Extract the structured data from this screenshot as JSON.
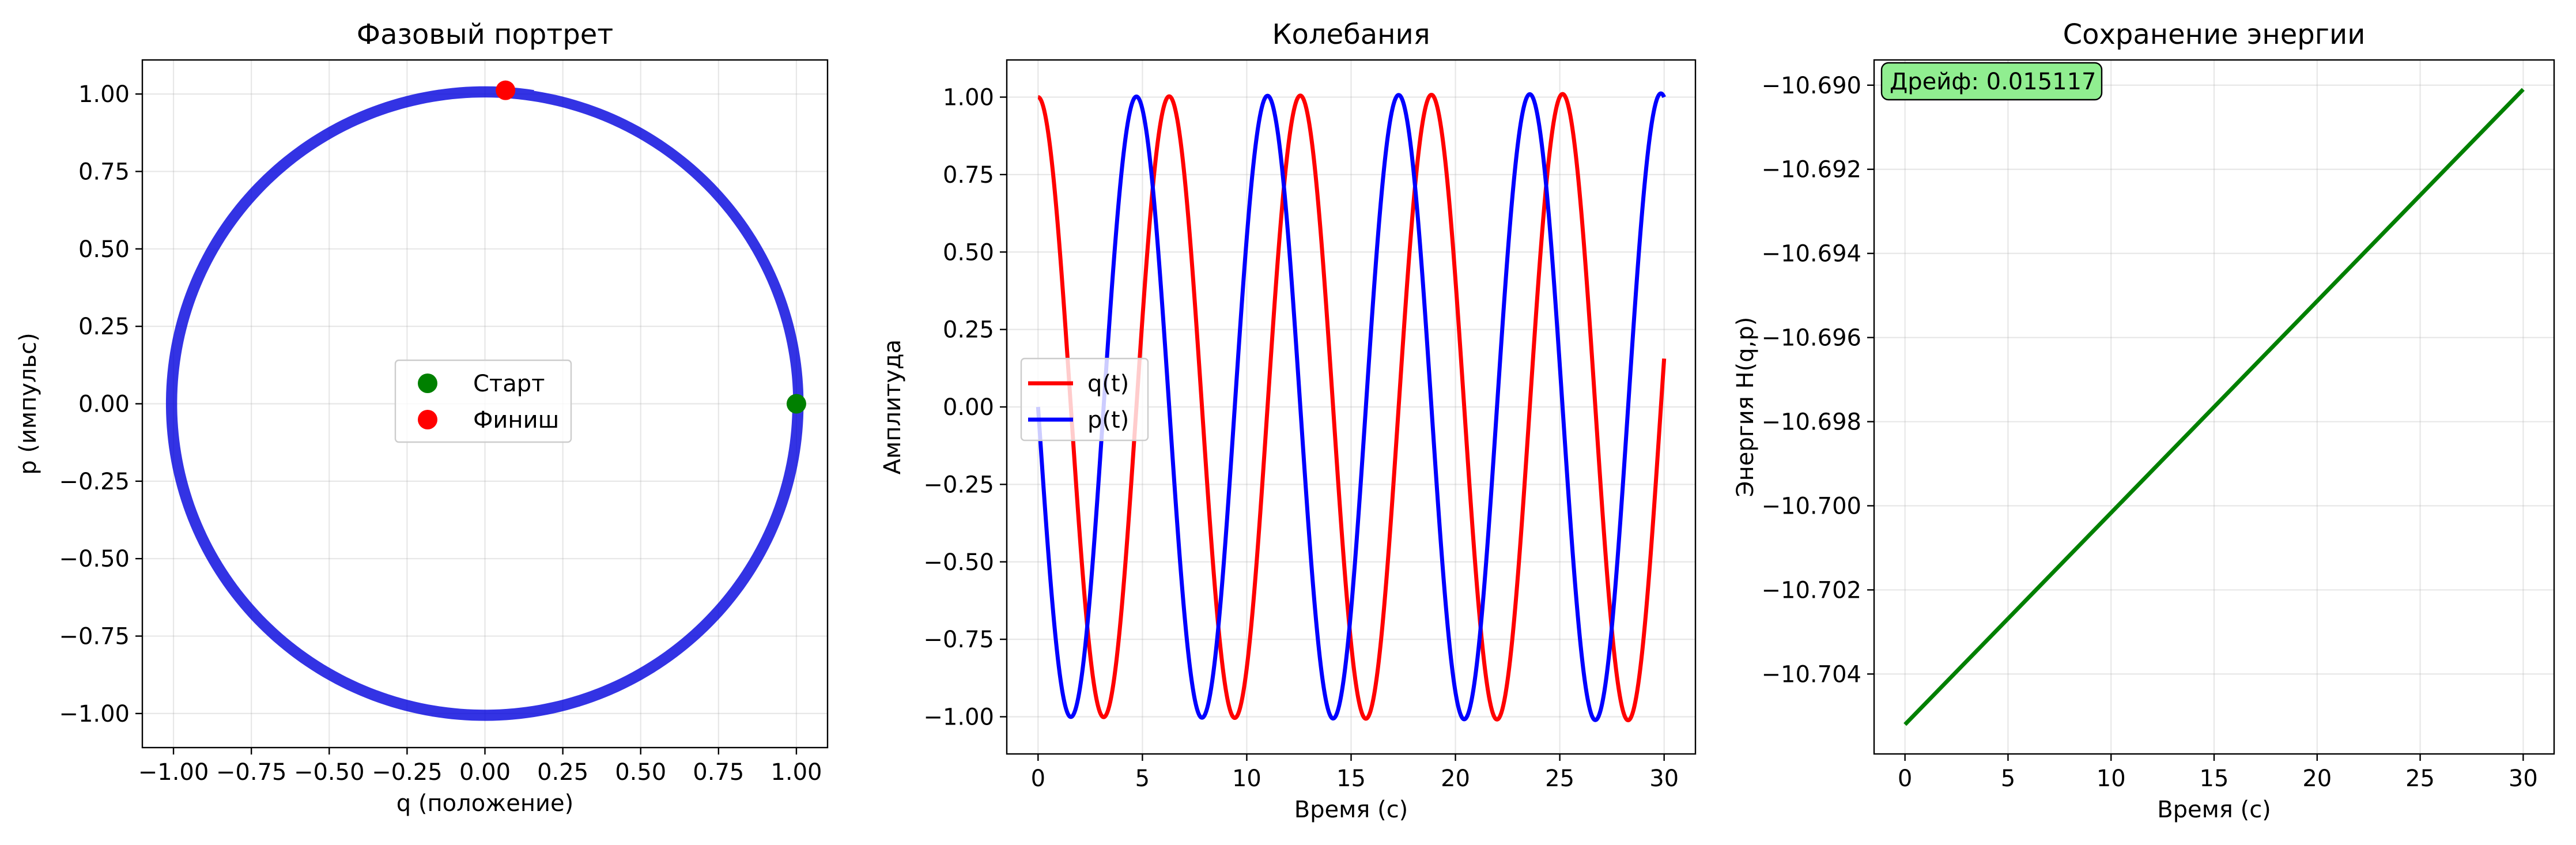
{
  "chart_data": [
    {
      "type": "line",
      "title": "Фазовый портрет",
      "xlabel": "q (положение)",
      "ylabel": "p (импульс)",
      "xlim": [
        -1.1,
        1.1
      ],
      "ylim": [
        -1.11,
        1.11
      ],
      "xticks": [
        -1.0,
        -0.75,
        -0.5,
        -0.25,
        0.0,
        0.25,
        0.5,
        0.75,
        1.0
      ],
      "xtick_labels": [
        "−1.00",
        "−0.75",
        "−0.50",
        "−0.25",
        "0.00",
        "0.25",
        "0.50",
        "0.75",
        "1.00"
      ],
      "yticks": [
        -1.0,
        -0.75,
        -0.5,
        -0.25,
        0.0,
        0.25,
        0.5,
        0.75,
        1.0
      ],
      "ytick_labels": [
        "−1.00",
        "−0.75",
        "−0.50",
        "−0.25",
        "0.00",
        "0.25",
        "0.50",
        "0.75",
        "1.00"
      ],
      "grid": true,
      "series": [
        {
          "kind": "curve",
          "description": "p = -sin(t), q = cos(t), t in [0, 30]",
          "color": "#0000dd"
        }
      ],
      "points": [
        {
          "name": "Старт",
          "q": 1.0,
          "p": 0.0,
          "color": "#008000"
        },
        {
          "name": "Финиш",
          "q": 0.066,
          "p": 1.012,
          "color": "#ff0000"
        }
      ],
      "legend": {
        "placement": "center",
        "entries": [
          "Старт",
          "Финиш"
        ]
      }
    },
    {
      "type": "line",
      "title": "Колебания",
      "xlabel": "Время (с)",
      "ylabel": "Амплитуда",
      "xlim": [
        -1.5,
        31.5
      ],
      "ylim": [
        -1.12,
        1.12
      ],
      "xticks": [
        0,
        5,
        10,
        15,
        20,
        25,
        30
      ],
      "xtick_labels": [
        "0",
        "5",
        "10",
        "15",
        "20",
        "25",
        "30"
      ],
      "yticks": [
        -1.0,
        -0.75,
        -0.5,
        -0.25,
        0.0,
        0.25,
        0.5,
        0.75,
        1.0
      ],
      "ytick_labels": [
        "−1.00",
        "−0.75",
        "−0.50",
        "−0.25",
        "0.00",
        "0.25",
        "0.50",
        "0.75",
        "1.00"
      ],
      "grid": true,
      "series": [
        {
          "name": "q(t)",
          "formula": "cos",
          "amplitude_start": 1.0,
          "amplitude_end": 1.012,
          "color": "#ff0000"
        },
        {
          "name": "p(t)",
          "formula": "-sin",
          "amplitude_start": 1.0,
          "amplitude_end": 1.012,
          "color": "#0000ff"
        }
      ],
      "legend": {
        "placement": "center-left",
        "entries": [
          "q(t)",
          "p(t)"
        ]
      }
    },
    {
      "type": "line",
      "title": "Сохранение энергии",
      "xlabel": "Время (с)",
      "ylabel": "Энергия H(q,p)",
      "xlim": [
        -1.5,
        31.5
      ],
      "ylim": [
        -10.7059,
        -10.6894
      ],
      "xticks": [
        0,
        5,
        10,
        15,
        20,
        25,
        30
      ],
      "xtick_labels": [
        "0",
        "5",
        "10",
        "15",
        "20",
        "25",
        "30"
      ],
      "yticks": [
        -10.704,
        -10.702,
        -10.7,
        -10.698,
        -10.696,
        -10.694,
        -10.692,
        -10.69
      ],
      "ytick_labels": [
        "−10.704",
        "−10.702",
        "−10.700",
        "−10.698",
        "−10.696",
        "−10.694",
        "−10.692",
        "−10.690"
      ],
      "grid": true,
      "series": [
        {
          "name": "H",
          "x": [
            0,
            30
          ],
          "y": [
            -10.7052,
            -10.6901
          ],
          "color": "#008000"
        }
      ],
      "annotation": {
        "text": "Дрейф: 0.015117",
        "placement": "top-left",
        "background": "#90ee90"
      }
    }
  ]
}
